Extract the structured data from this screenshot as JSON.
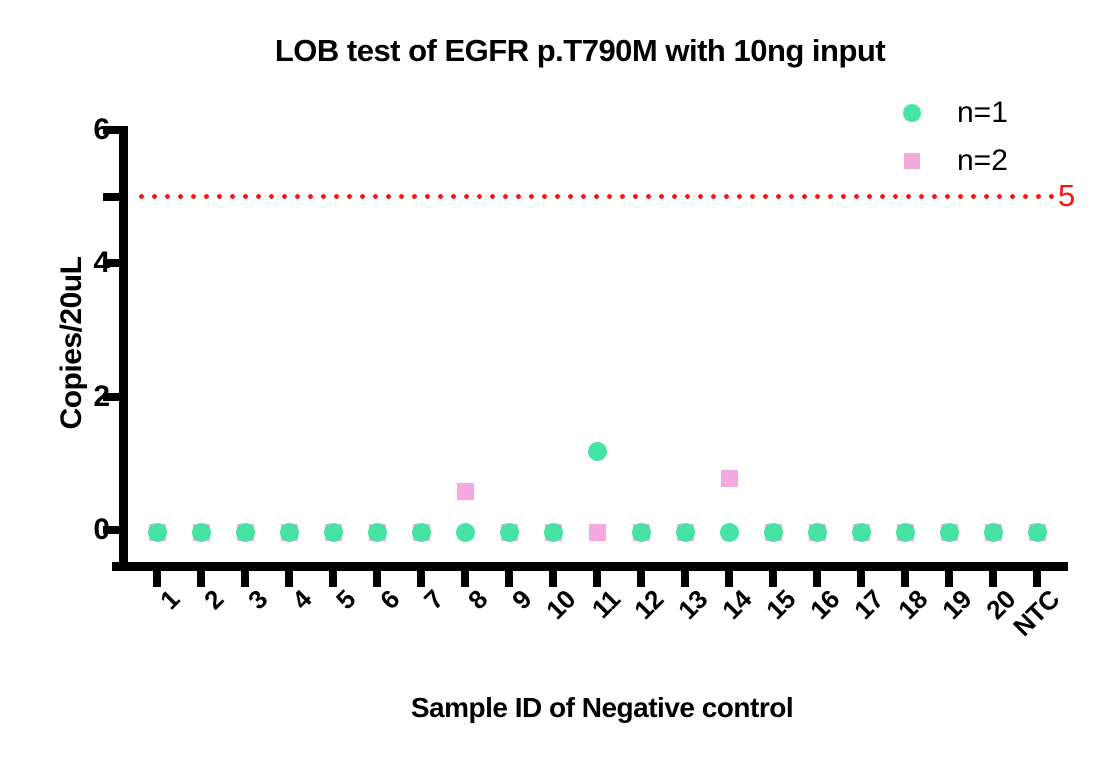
{
  "chart_data": {
    "type": "scatter",
    "title": "LOB test of EGFR p.T790M with 10ng input",
    "xlabel": "Sample ID of Negative control",
    "ylabel": "Copies/20uL",
    "categories": [
      "1",
      "2",
      "3",
      "4",
      "5",
      "6",
      "7",
      "8",
      "9",
      "10",
      "11",
      "12",
      "13",
      "14",
      "15",
      "16",
      "17",
      "18",
      "19",
      "20",
      "NTC"
    ],
    "series": [
      {
        "name": "n=1",
        "marker": "circle",
        "color": "#46e3a5",
        "values": [
          0,
          0,
          0,
          0,
          0,
          0,
          0,
          0,
          0,
          0,
          1.2,
          0,
          0,
          0,
          0,
          0,
          0,
          0,
          0,
          0,
          0
        ]
      },
      {
        "name": "n=2",
        "marker": "square",
        "color": "#f5a9e1",
        "values": [
          0,
          0,
          0,
          0,
          0,
          0,
          0,
          0.6,
          0,
          0,
          0,
          0,
          0,
          0.8,
          0,
          0,
          0,
          0,
          0,
          0,
          0
        ]
      }
    ],
    "ylim": [
      0,
      6
    ],
    "yticks_major": [
      0,
      2,
      4,
      6
    ],
    "yticks_extra": [
      5
    ],
    "threshold": {
      "value": 5,
      "label": "5",
      "color": "#f81414",
      "style": "dotted"
    },
    "legend_position": "top-right",
    "grid": false,
    "axis_color": "#000000",
    "background": "#ffffff"
  }
}
